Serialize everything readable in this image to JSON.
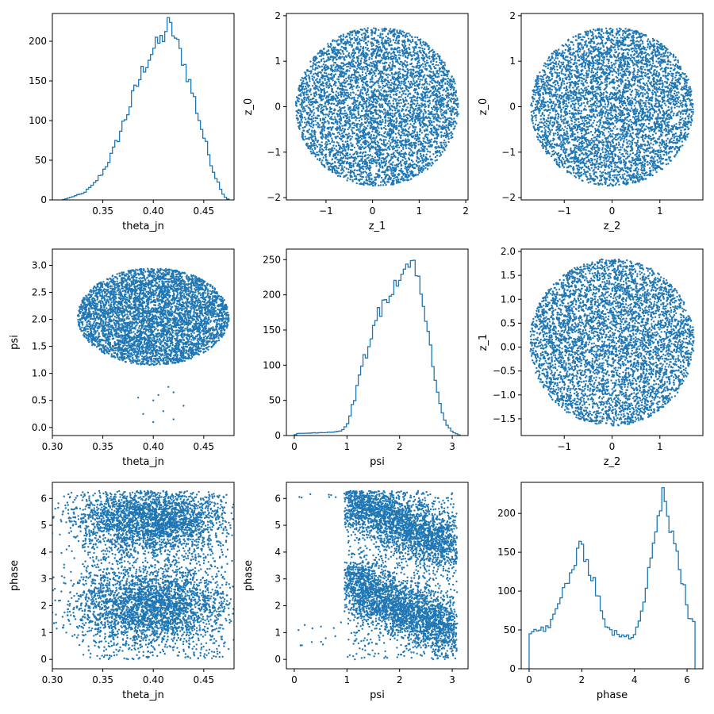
{
  "figure": {
    "background": "#ffffff",
    "point_color": "#1f77b4",
    "line_color": "#1f77b4"
  },
  "chart_data": [
    {
      "type": "histogram",
      "row": 0,
      "col": 0,
      "xlabel": "theta_jn",
      "ylabel": "",
      "xlim": [
        0.3,
        0.48
      ],
      "ylim": [
        0,
        235
      ],
      "xticks": [
        "0.35",
        "0.40",
        "0.45"
      ],
      "yticks": [
        "0",
        "50",
        "100",
        "150",
        "200"
      ],
      "xtick_values": [
        0.35,
        0.4,
        0.45
      ],
      "ytick_values": [
        0,
        50,
        100,
        150,
        200
      ],
      "profile": [
        [
          0.31,
          0
        ],
        [
          0.32,
          4
        ],
        [
          0.33,
          8
        ],
        [
          0.34,
          18
        ],
        [
          0.35,
          35
        ],
        [
          0.36,
          60
        ],
        [
          0.37,
          95
        ],
        [
          0.38,
          130
        ],
        [
          0.39,
          165
        ],
        [
          0.4,
          190
        ],
        [
          0.41,
          205
        ],
        [
          0.415,
          222
        ],
        [
          0.42,
          210
        ],
        [
          0.43,
          175
        ],
        [
          0.44,
          130
        ],
        [
          0.45,
          80
        ],
        [
          0.46,
          35
        ],
        [
          0.47,
          5
        ],
        [
          0.475,
          0
        ]
      ]
    },
    {
      "type": "scatter",
      "row": 0,
      "col": 1,
      "xlabel": "z_1",
      "ylabel": "z_0",
      "xlim": [
        -1.85,
        2.05
      ],
      "ylim": [
        -2.05,
        2.05
      ],
      "xticks": [
        "−1",
        "0",
        "1",
        "2"
      ],
      "yticks": [
        "−2",
        "−1",
        "0",
        "1",
        "2"
      ],
      "xtick_values": [
        -1,
        0,
        1,
        2
      ],
      "ytick_values": [
        -2,
        -1,
        0,
        1,
        2
      ],
      "cloud": {
        "center": [
          0.1,
          0
        ],
        "radius": [
          1.75,
          1.75
        ]
      }
    },
    {
      "type": "scatter",
      "row": 0,
      "col": 2,
      "xlabel": "z_2",
      "ylabel": "z_0",
      "xlim": [
        -1.9,
        1.9
      ],
      "ylim": [
        -2.05,
        2.05
      ],
      "xticks": [
        "−1",
        "0",
        "1"
      ],
      "yticks": [
        "−2",
        "−1",
        "0",
        "1",
        "2"
      ],
      "xtick_values": [
        -1,
        0,
        1
      ],
      "ytick_values": [
        -2,
        -1,
        0,
        1,
        2
      ],
      "cloud": {
        "center": [
          0,
          0
        ],
        "radius": [
          1.7,
          1.75
        ]
      }
    },
    {
      "type": "scatter",
      "row": 1,
      "col": 0,
      "xlabel": "theta_jn",
      "ylabel": "psi",
      "xlim": [
        0.3,
        0.48
      ],
      "ylim": [
        -0.15,
        3.3
      ],
      "xticks": [
        "0.30",
        "0.35",
        "0.40",
        "0.45"
      ],
      "yticks": [
        "0.0",
        "0.5",
        "1.0",
        "1.5",
        "2.0",
        "2.5",
        "3.0"
      ],
      "xtick_values": [
        0.3,
        0.35,
        0.4,
        0.45
      ],
      "ytick_values": [
        0,
        0.5,
        1.0,
        1.5,
        2.0,
        2.5,
        3.0
      ],
      "cloud": {
        "center": [
          0.4,
          2.05
        ],
        "radius": [
          0.075,
          0.9
        ]
      },
      "outliers": [
        [
          0.4,
          0.5
        ],
        [
          0.41,
          0.3
        ],
        [
          0.42,
          0.15
        ],
        [
          0.39,
          0.25
        ],
        [
          0.405,
          0.6
        ],
        [
          0.43,
          0.4
        ],
        [
          0.415,
          0.75
        ],
        [
          0.385,
          0.55
        ],
        [
          0.42,
          0.65
        ],
        [
          0.4,
          0.1
        ]
      ]
    },
    {
      "type": "histogram",
      "row": 1,
      "col": 1,
      "xlabel": "psi",
      "ylabel": "",
      "xlim": [
        -0.15,
        3.3
      ],
      "ylim": [
        0,
        265
      ],
      "xticks": [
        "0",
        "1",
        "2",
        "3"
      ],
      "yticks": [
        "0",
        "50",
        "100",
        "150",
        "200",
        "250"
      ],
      "xtick_values": [
        0,
        1,
        2,
        3
      ],
      "ytick_values": [
        0,
        50,
        100,
        150,
        200,
        250
      ],
      "profile": [
        [
          0.0,
          0
        ],
        [
          0.05,
          3
        ],
        [
          0.5,
          4
        ],
        [
          0.9,
          6
        ],
        [
          1.0,
          15
        ],
        [
          1.1,
          40
        ],
        [
          1.3,
          100
        ],
        [
          1.5,
          155
        ],
        [
          1.7,
          190
        ],
        [
          1.9,
          215
        ],
        [
          2.1,
          235
        ],
        [
          2.2,
          252
        ],
        [
          2.3,
          240
        ],
        [
          2.4,
          205
        ],
        [
          2.5,
          160
        ],
        [
          2.6,
          120
        ],
        [
          2.7,
          75
        ],
        [
          2.8,
          35
        ],
        [
          2.9,
          15
        ],
        [
          3.0,
          5
        ],
        [
          3.1,
          2
        ],
        [
          3.15,
          0
        ]
      ]
    },
    {
      "type": "scatter",
      "row": 1,
      "col": 2,
      "xlabel": "z_2",
      "ylabel": "z_1",
      "xlim": [
        -1.9,
        1.9
      ],
      "ylim": [
        -1.85,
        2.05
      ],
      "xticks": [
        "−1",
        "0",
        "1"
      ],
      "yticks": [
        "−1.5",
        "−1.0",
        "−0.5",
        "0.0",
        "0.5",
        "1.0",
        "1.5",
        "2.0"
      ],
      "xtick_values": [
        -1,
        0,
        1
      ],
      "ytick_values": [
        -1.5,
        -1.0,
        -0.5,
        0,
        0.5,
        1.0,
        1.5,
        2.0
      ],
      "cloud": {
        "center": [
          0,
          0.1
        ],
        "radius": [
          1.72,
          1.75
        ]
      }
    },
    {
      "type": "scatter",
      "row": 2,
      "col": 0,
      "xlabel": "theta_jn",
      "ylabel": "phase",
      "xlim": [
        0.3,
        0.48
      ],
      "ylim": [
        -0.35,
        6.6
      ],
      "xticks": [
        "0.30",
        "0.35",
        "0.40",
        "0.45"
      ],
      "yticks": [
        "0",
        "1",
        "2",
        "3",
        "4",
        "5",
        "6"
      ],
      "xtick_values": [
        0.3,
        0.35,
        0.4,
        0.45
      ],
      "ytick_values": [
        0,
        1,
        2,
        3,
        4,
        5,
        6
      ],
      "bands": [
        {
          "x_range": [
            0.33,
            0.465
          ],
          "y_center": 5.2,
          "y_spread": 1.0
        },
        {
          "x_range": [
            0.33,
            0.465
          ],
          "y_center": 2.0,
          "y_spread": 1.2
        }
      ],
      "y_range": [
        0,
        6.28
      ]
    },
    {
      "type": "scatter",
      "row": 2,
      "col": 1,
      "xlabel": "psi",
      "ylabel": "phase",
      "xlim": [
        -0.15,
        3.3
      ],
      "ylim": [
        -0.35,
        6.6
      ],
      "xticks": [
        "0",
        "1",
        "2",
        "3"
      ],
      "yticks": [
        "0",
        "1",
        "2",
        "3",
        "4",
        "5",
        "6"
      ],
      "xtick_values": [
        0,
        1,
        2,
        3
      ],
      "ytick_values": [
        0,
        1,
        2,
        3,
        4,
        5,
        6
      ],
      "diagonal_bands": [
        {
          "x_start": 1.0,
          "y_start": 6.0,
          "x_end": 3.0,
          "y_end": 4.2
        },
        {
          "x_start": 1.0,
          "y_start": 2.9,
          "x_end": 3.0,
          "y_end": 1.0
        }
      ]
    },
    {
      "type": "histogram",
      "row": 2,
      "col": 2,
      "xlabel": "phase",
      "ylabel": "",
      "xlim": [
        -0.3,
        6.6
      ],
      "ylim": [
        0,
        240
      ],
      "xticks": [
        "0",
        "2",
        "4",
        "6"
      ],
      "yticks": [
        "0",
        "50",
        "100",
        "150",
        "200"
      ],
      "xtick_values": [
        0,
        2,
        4,
        6
      ],
      "ytick_values": [
        0,
        50,
        100,
        150,
        200
      ],
      "profile": [
        [
          0.0,
          0
        ],
        [
          0.01,
          45
        ],
        [
          0.3,
          50
        ],
        [
          0.6,
          50
        ],
        [
          0.9,
          62
        ],
        [
          1.2,
          90
        ],
        [
          1.5,
          118
        ],
        [
          1.8,
          140
        ],
        [
          2.0,
          160
        ],
        [
          2.2,
          140
        ],
        [
          2.5,
          110
        ],
        [
          2.8,
          70
        ],
        [
          3.0,
          50
        ],
        [
          3.5,
          42
        ],
        [
          3.8,
          40
        ],
        [
          4.0,
          45
        ],
        [
          4.3,
          80
        ],
        [
          4.6,
          140
        ],
        [
          4.9,
          195
        ],
        [
          5.1,
          228
        ],
        [
          5.3,
          185
        ],
        [
          5.6,
          150
        ],
        [
          5.9,
          100
        ],
        [
          6.1,
          60
        ],
        [
          6.28,
          65
        ],
        [
          6.3,
          0
        ]
      ]
    }
  ]
}
